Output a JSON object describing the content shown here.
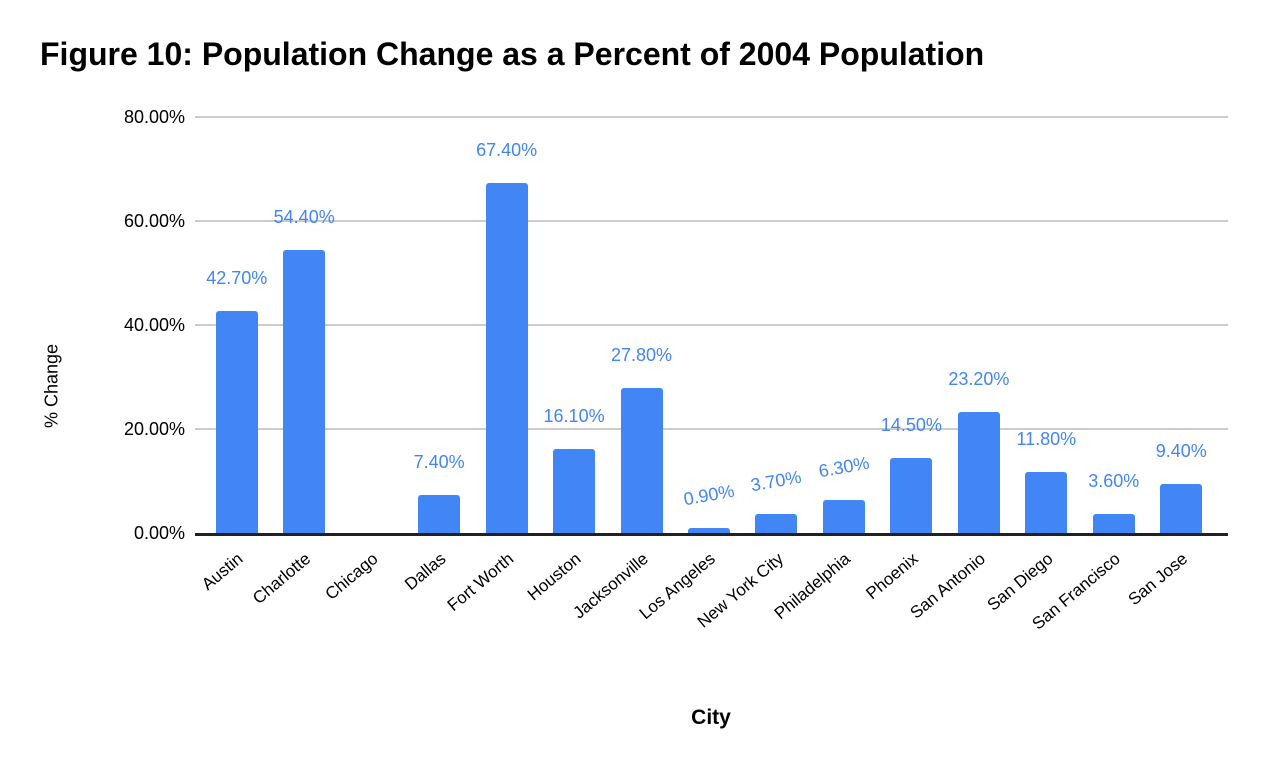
{
  "chart_data": {
    "type": "bar",
    "title": "Figure 10: Population Change as a Percent of 2004 Population",
    "xlabel": "City",
    "ylabel": "% Change",
    "categories": [
      "Austin",
      "Charlotte",
      "Chicago",
      "Dallas",
      "Fort Worth",
      "Houston",
      "Jacksonville",
      "Los Angeles",
      "New York City",
      "Philadelphia",
      "Phoenix",
      "San Antonio",
      "San Diego",
      "San Francisco",
      "San Jose"
    ],
    "values": [
      42.7,
      54.4,
      0,
      7.4,
      67.4,
      16.1,
      27.8,
      0.9,
      3.7,
      6.3,
      14.5,
      23.2,
      11.8,
      3.6,
      9.4
    ],
    "bar_labels": [
      "42.70%",
      "54.40%",
      "",
      "7.40%",
      "67.40%",
      "16.10%",
      "27.80%",
      "0.90%",
      "3.70%",
      "6.30%",
      "14.50%",
      "23.20%",
      "11.80%",
      "3.60%",
      "9.40%"
    ],
    "ylim": [
      0,
      80
    ],
    "y_ticks": [
      {
        "value": 0,
        "label": "0.00%"
      },
      {
        "value": 20,
        "label": "20.00%"
      },
      {
        "value": 40,
        "label": "40.00%"
      },
      {
        "value": 60,
        "label": "60.00%"
      },
      {
        "value": 80,
        "label": "80.00%"
      }
    ],
    "grid": true,
    "legend": false,
    "colors": {
      "bar": "#4285f4",
      "data_label": "#4285f4",
      "gridline": "#cccccc",
      "axis": "#212121",
      "text": "#000000",
      "background": "#ffffff"
    }
  }
}
